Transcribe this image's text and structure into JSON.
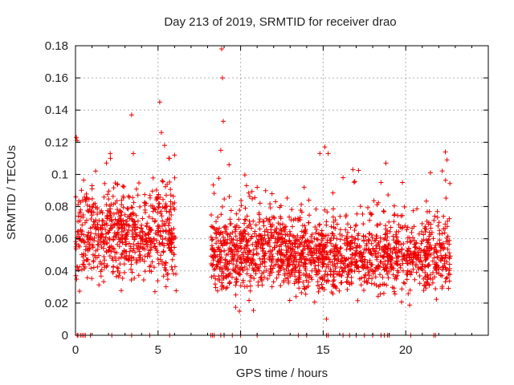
{
  "chart_data": {
    "type": "scatter",
    "title": "Day 213 of 2019, SRMTID for receiver drao",
    "xlabel": "GPS time / hours",
    "ylabel": "SRMTID / TECUs",
    "xlim": [
      0,
      25
    ],
    "ylim": [
      0,
      0.18
    ],
    "x_ticks": [
      0,
      5,
      10,
      15,
      20
    ],
    "x_tick_labels": [
      "0",
      "5",
      "10",
      "15",
      "20"
    ],
    "y_ticks": [
      0,
      0.02,
      0.04,
      0.06,
      0.08,
      0.1,
      0.12,
      0.14,
      0.16,
      0.18
    ],
    "y_tick_labels": [
      "0",
      "0.02",
      "0.04",
      "0.06",
      "0.08",
      "0.1",
      "0.12",
      "0.14",
      "0.16",
      "0.18"
    ],
    "grid": true,
    "marker": "+",
    "color": "#ee0000",
    "series": [
      {
        "name": "SRMTID",
        "segments": [
          {
            "x_start": 0.0,
            "x_end": 6.1,
            "base": 0.062,
            "spread": 0.018,
            "count": 700,
            "peaks": [
              [
                0.05,
                0.123
              ],
              [
                0.1,
                0.121
              ],
              [
                1.0,
                0.093
              ],
              [
                2.1,
                0.113
              ],
              [
                3.4,
                0.137
              ],
              [
                3.5,
                0.113
              ],
              [
                5.1,
                0.145
              ],
              [
                5.2,
                0.126
              ],
              [
                5.4,
                0.118
              ],
              [
                6.0,
                0.112
              ]
            ]
          },
          {
            "x_start": 8.2,
            "x_end": 12.4,
            "base": 0.052,
            "spread": 0.016,
            "count": 520,
            "peaks": [
              [
                8.85,
                0.178
              ],
              [
                8.9,
                0.16
              ],
              [
                8.95,
                0.133
              ],
              [
                8.8,
                0.115
              ],
              [
                9.3,
                0.106
              ],
              [
                11.0,
                0.092
              ],
              [
                11.9,
                0.088
              ]
            ]
          },
          {
            "x_start": 12.4,
            "x_end": 15.5,
            "base": 0.05,
            "spread": 0.014,
            "count": 420,
            "peaks": [
              [
                15.1,
                0.117
              ],
              [
                15.3,
                0.113
              ],
              [
                14.8,
                0.113
              ],
              [
                15.2,
                0.01
              ]
            ]
          },
          {
            "x_start": 15.5,
            "x_end": 22.7,
            "base": 0.05,
            "spread": 0.015,
            "count": 780,
            "peaks": [
              [
                16.2,
                0.098
              ],
              [
                16.8,
                0.103
              ],
              [
                18.5,
                0.095
              ],
              [
                18.8,
                0.107
              ],
              [
                19.8,
                0.095
              ],
              [
                21.5,
                0.101
              ],
              [
                22.4,
                0.114
              ],
              [
                22.5,
                0.109
              ]
            ]
          }
        ],
        "zero_points": [
          0.1,
          0.15,
          0.3,
          0.4,
          0.5,
          0.6,
          0.9,
          2.2,
          3.4,
          4.5,
          5.7,
          8.2,
          8.3,
          8.4,
          8.8,
          9.0,
          9.5,
          10.0,
          11.0,
          13.5,
          14.0,
          15.2,
          15.3,
          16.2,
          16.6,
          17.0,
          17.5,
          18.0,
          18.5,
          18.7,
          18.9,
          19.0,
          20.3,
          21.7,
          21.8
        ]
      }
    ]
  }
}
